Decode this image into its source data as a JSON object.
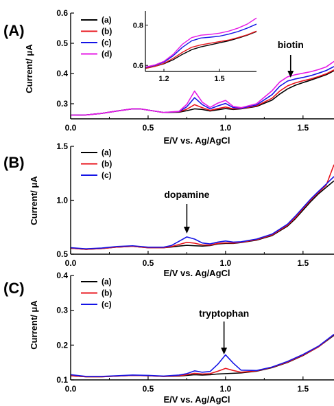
{
  "colors": {
    "a": "#000000",
    "b": "#e8141c",
    "c": "#1414e6",
    "d": "#e619e6"
  },
  "chart_data": [
    {
      "type": "line",
      "panel_label": "(A)",
      "xlabel": "E/V vs. Ag/AgCl",
      "ylabel": "Current/ μA",
      "xlim": [
        0.0,
        1.7
      ],
      "ylim": [
        0.25,
        0.6
      ],
      "xticks": [
        0.0,
        0.5,
        1.0,
        1.5
      ],
      "xtick_labels": [
        "0.0",
        "0.5",
        "1.0",
        "1.5"
      ],
      "yticks": [
        0.3,
        0.4,
        0.5,
        0.6
      ],
      "ytick_labels": [
        "0.3",
        "0.4",
        "0.5",
        "0.6"
      ],
      "legend_position": "top-left",
      "annotation": {
        "text": "biotin",
        "x": 1.42,
        "y": 0.39
      },
      "x": [
        0.0,
        0.1,
        0.2,
        0.3,
        0.4,
        0.45,
        0.5,
        0.6,
        0.7,
        0.75,
        0.8,
        0.85,
        0.9,
        0.95,
        1.0,
        1.05,
        1.1,
        1.2,
        1.3,
        1.35,
        1.4,
        1.45,
        1.5,
        1.55,
        1.6,
        1.65,
        1.7
      ],
      "series": [
        {
          "name": "(a)",
          "color_key": "a",
          "values": [
            0.262,
            0.263,
            0.268,
            0.276,
            0.283,
            0.283,
            0.279,
            0.271,
            0.272,
            0.277,
            0.283,
            0.281,
            0.276,
            0.28,
            0.284,
            0.281,
            0.283,
            0.291,
            0.312,
            0.332,
            0.349,
            0.361,
            0.37,
            0.378,
            0.387,
            0.396,
            0.409
          ]
        },
        {
          "name": "(b)",
          "color_key": "b",
          "values": [
            0.262,
            0.263,
            0.268,
            0.276,
            0.283,
            0.283,
            0.279,
            0.271,
            0.273,
            0.282,
            0.297,
            0.287,
            0.278,
            0.284,
            0.289,
            0.283,
            0.284,
            0.293,
            0.318,
            0.342,
            0.359,
            0.369,
            0.376,
            0.382,
            0.39,
            0.399,
            0.412
          ]
        },
        {
          "name": "(c)",
          "color_key": "c",
          "values": [
            0.262,
            0.263,
            0.268,
            0.276,
            0.283,
            0.283,
            0.279,
            0.271,
            0.274,
            0.29,
            0.32,
            0.297,
            0.283,
            0.293,
            0.301,
            0.287,
            0.285,
            0.296,
            0.33,
            0.358,
            0.375,
            0.382,
            0.387,
            0.393,
            0.401,
            0.41,
            0.423
          ]
        },
        {
          "name": "(d)",
          "color_key": "d",
          "values": [
            0.262,
            0.263,
            0.268,
            0.276,
            0.283,
            0.283,
            0.279,
            0.271,
            0.275,
            0.298,
            0.342,
            0.305,
            0.288,
            0.302,
            0.311,
            0.291,
            0.287,
            0.3,
            0.343,
            0.372,
            0.389,
            0.396,
            0.401,
            0.406,
            0.413,
            0.422,
            0.44
          ]
        }
      ],
      "inset": {
        "xlim": [
          1.1,
          1.7
        ],
        "ylim": [
          0.57,
          0.87
        ],
        "xticks": [
          1.2,
          1.5
        ],
        "xtick_labels": [
          "1.2",
          "1.5"
        ],
        "yticks": [
          0.6,
          0.8
        ],
        "ytick_labels": [
          "0.6",
          "0.8"
        ],
        "x": [
          1.1,
          1.15,
          1.2,
          1.25,
          1.3,
          1.35,
          1.4,
          1.45,
          1.5,
          1.55,
          1.6,
          1.65,
          1.7
        ],
        "series": [
          {
            "name": "(a)",
            "color_key": "a",
            "values": [
              0.585,
              0.595,
              0.608,
              0.628,
              0.655,
              0.678,
              0.692,
              0.702,
              0.712,
              0.722,
              0.735,
              0.75,
              0.768
            ]
          },
          {
            "name": "(b)",
            "color_key": "b",
            "values": [
              0.585,
              0.595,
              0.61,
              0.635,
              0.665,
              0.69,
              0.702,
              0.71,
              0.718,
              0.726,
              0.738,
              0.752,
              0.77
            ]
          },
          {
            "name": "(c)",
            "color_key": "c",
            "values": [
              0.59,
              0.6,
              0.616,
              0.648,
              0.69,
              0.722,
              0.736,
              0.74,
              0.745,
              0.755,
              0.768,
              0.785,
              0.805
            ]
          },
          {
            "name": "(d)",
            "color_key": "d",
            "values": [
              0.592,
              0.602,
              0.62,
              0.655,
              0.705,
              0.738,
              0.75,
              0.754,
              0.76,
              0.77,
              0.785,
              0.805,
              0.835
            ]
          }
        ]
      }
    },
    {
      "type": "line",
      "panel_label": "(B)",
      "xlabel": "E/V vs. Ag/AgCl",
      "ylabel": "Current/ μA",
      "xlim": [
        0.0,
        1.7
      ],
      "ylim": [
        0.5,
        1.5
      ],
      "xticks": [
        0.0,
        0.5,
        1.0,
        1.5
      ],
      "xtick_labels": [
        "0.0",
        "0.5",
        "1.0",
        "1.5"
      ],
      "yticks": [
        0.5,
        1.0,
        1.5
      ],
      "ytick_labels": [
        "0.5",
        "1.0",
        "1.5"
      ],
      "legend_position": "top-left",
      "annotation": {
        "text": "dopamine",
        "x": 0.75,
        "y": 0.69
      },
      "x": [
        0.0,
        0.1,
        0.2,
        0.3,
        0.4,
        0.5,
        0.6,
        0.65,
        0.7,
        0.75,
        0.8,
        0.85,
        0.9,
        0.95,
        1.0,
        1.05,
        1.1,
        1.2,
        1.3,
        1.4,
        1.45,
        1.5,
        1.55,
        1.6,
        1.65,
        1.7
      ],
      "series": [
        {
          "name": "(a)",
          "color_key": "a",
          "values": [
            0.555,
            0.545,
            0.552,
            0.566,
            0.573,
            0.56,
            0.56,
            0.566,
            0.575,
            0.582,
            0.578,
            0.575,
            0.58,
            0.595,
            0.6,
            0.6,
            0.608,
            0.63,
            0.672,
            0.76,
            0.828,
            0.908,
            0.988,
            1.06,
            1.12,
            1.18
          ]
        },
        {
          "name": "(b)",
          "color_key": "b",
          "values": [
            0.555,
            0.545,
            0.552,
            0.566,
            0.573,
            0.56,
            0.56,
            0.57,
            0.59,
            0.61,
            0.602,
            0.586,
            0.584,
            0.6,
            0.605,
            0.603,
            0.61,
            0.634,
            0.678,
            0.768,
            0.838,
            0.922,
            1.002,
            1.072,
            1.14,
            1.33
          ]
        },
        {
          "name": "(c)",
          "color_key": "c",
          "values": [
            0.56,
            0.55,
            0.557,
            0.571,
            0.578,
            0.565,
            0.565,
            0.58,
            0.62,
            0.66,
            0.64,
            0.604,
            0.595,
            0.612,
            0.622,
            0.612,
            0.615,
            0.64,
            0.686,
            0.778,
            0.852,
            0.932,
            1.012,
            1.082,
            1.15,
            1.22
          ]
        }
      ]
    },
    {
      "type": "line",
      "panel_label": "(C)",
      "xlabel": "E/V vs. Ag/AgCl",
      "ylabel": "Current/ μA",
      "xlim": [
        0.0,
        1.7
      ],
      "ylim": [
        0.1,
        0.4
      ],
      "xticks": [
        0.0,
        0.5,
        1.0,
        1.5
      ],
      "xtick_labels": [
        "0.0",
        "0.5",
        "1.0",
        "1.5"
      ],
      "yticks": [
        0.1,
        0.2,
        0.3,
        0.4
      ],
      "ytick_labels": [
        "0.1",
        "0.2",
        "0.3",
        "0.4"
      ],
      "legend_position": "top-left",
      "annotation": {
        "text": "tryptophan",
        "x": 0.99,
        "y": 0.18
      },
      "x": [
        0.0,
        0.1,
        0.2,
        0.3,
        0.4,
        0.5,
        0.6,
        0.7,
        0.75,
        0.8,
        0.85,
        0.9,
        0.95,
        1.0,
        1.05,
        1.1,
        1.2,
        1.3,
        1.4,
        1.5,
        1.6,
        1.7
      ],
      "series": [
        {
          "name": "(a)",
          "color_key": "a",
          "values": [
            0.112,
            0.109,
            0.109,
            0.111,
            0.113,
            0.112,
            0.11,
            0.111,
            0.113,
            0.115,
            0.114,
            0.115,
            0.117,
            0.118,
            0.119,
            0.12,
            0.125,
            0.135,
            0.15,
            0.17,
            0.195,
            0.228
          ]
        },
        {
          "name": "(b)",
          "color_key": "b",
          "values": [
            0.112,
            0.109,
            0.109,
            0.111,
            0.113,
            0.112,
            0.11,
            0.112,
            0.115,
            0.119,
            0.117,
            0.118,
            0.125,
            0.133,
            0.127,
            0.122,
            0.126,
            0.136,
            0.151,
            0.171,
            0.195,
            0.23
          ]
        },
        {
          "name": "(c)",
          "color_key": "c",
          "values": [
            0.115,
            0.11,
            0.11,
            0.112,
            0.114,
            0.113,
            0.111,
            0.114,
            0.118,
            0.126,
            0.122,
            0.124,
            0.145,
            0.172,
            0.148,
            0.128,
            0.127,
            0.137,
            0.153,
            0.173,
            0.197,
            0.231
          ]
        }
      ]
    }
  ]
}
